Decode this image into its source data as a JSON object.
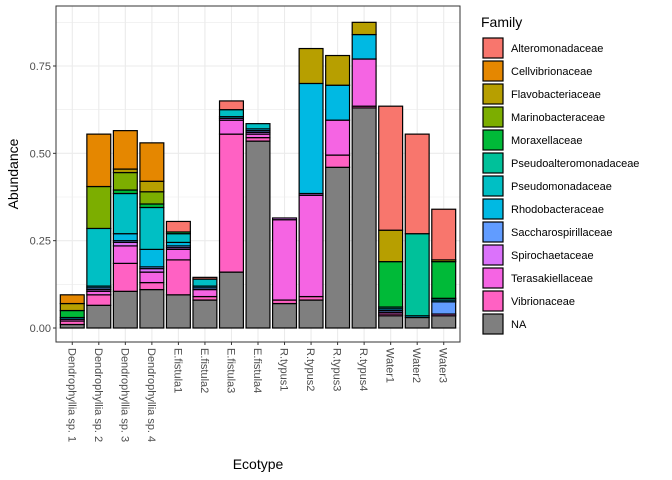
{
  "chart_data": {
    "type": "bar",
    "stacked": true,
    "xlabel": "Ecotype",
    "ylabel": "Abundance",
    "legend_title": "Family",
    "legend_position": "right",
    "grid": true,
    "ylim": [
      0,
      0.88
    ],
    "yticks": [
      0,
      0.25,
      0.5,
      0.75
    ],
    "ytick_labels": [
      "0.00",
      "0.25",
      "0.50",
      "0.75"
    ],
    "categories": [
      "Dendrophyllia sp. 1",
      "Dendrophyllia sp. 2",
      "Dendrophyllia sp. 3",
      "Dendrophyllia sp. 4",
      "E.fistula1",
      "E.fistula2",
      "E.fistula3",
      "E.fistula4",
      "R.typus1",
      "R.typus2",
      "R.typus3",
      "R.typus4",
      "Water1",
      "Water2",
      "Water3"
    ],
    "series": [
      {
        "name": "NA",
        "color": "#7F7F7F",
        "values": [
          0.01,
          0.065,
          0.105,
          0.11,
          0.095,
          0.08,
          0.16,
          0.535,
          0.07,
          0.08,
          0.46,
          0.63,
          0.035,
          0.03,
          0.035
        ]
      },
      {
        "name": "Vibrionaceae",
        "color": "#FF61C3",
        "values": [
          0.01,
          0.03,
          0.08,
          0.02,
          0.1,
          0.01,
          0.395,
          0.01,
          0.01,
          0.01,
          0.035,
          0.005,
          0.005,
          0.0,
          0.0
        ]
      },
      {
        "name": "Terasakiellaceae",
        "color": "#F564E3",
        "values": [
          0.005,
          0.01,
          0.05,
          0.03,
          0.03,
          0.02,
          0.04,
          0.01,
          0.23,
          0.29,
          0.1,
          0.135,
          0.005,
          0.0,
          0.005
        ]
      },
      {
        "name": "Spirochaetaceae",
        "color": "#DB72FB",
        "values": [
          0.0,
          0.005,
          0.01,
          0.01,
          0.005,
          0.0,
          0.005,
          0.005,
          0.005,
          0.005,
          0.0,
          0.0,
          0.0,
          0.0,
          0.0
        ]
      },
      {
        "name": "Saccharospirillaceae",
        "color": "#619CFF",
        "values": [
          0.0,
          0.005,
          0.005,
          0.005,
          0.005,
          0.005,
          0.0,
          0.005,
          0.0,
          0.0,
          0.0,
          0.0,
          0.005,
          0.0,
          0.035
        ]
      },
      {
        "name": "Rhodobacteraceae",
        "color": "#00B9E3",
        "values": [
          0.005,
          0.005,
          0.02,
          0.05,
          0.01,
          0.005,
          0.005,
          0.005,
          0.0,
          0.315,
          0.1,
          0.07,
          0.005,
          0.005,
          0.005
        ]
      },
      {
        "name": "Pseudomonadaceae",
        "color": "#00BFC4",
        "values": [
          0.0,
          0.165,
          0.115,
          0.12,
          0.025,
          0.02,
          0.02,
          0.015,
          0.0,
          0.0,
          0.0,
          0.0,
          0.0,
          0.0,
          0.0
        ]
      },
      {
        "name": "Pseudoalteromonadaceae",
        "color": "#00C19A",
        "values": [
          0.0,
          0.0,
          0.0,
          0.0,
          0.0,
          0.0,
          0.0,
          0.0,
          0.0,
          0.0,
          0.0,
          0.0,
          0.005,
          0.235,
          0.005
        ]
      },
      {
        "name": "Moraxellaceae",
        "color": "#00BA38",
        "values": [
          0.02,
          0.0,
          0.01,
          0.01,
          0.005,
          0.0,
          0.0,
          0.0,
          0.0,
          0.0,
          0.0,
          0.0,
          0.13,
          0.0,
          0.105
        ]
      },
      {
        "name": "Marinobacteraceae",
        "color": "#7CAE00",
        "values": [
          0.0,
          0.12,
          0.05,
          0.035,
          0.0,
          0.0,
          0.0,
          0.0,
          0.0,
          0.0,
          0.0,
          0.0,
          0.0,
          0.0,
          0.0
        ]
      },
      {
        "name": "Flavobacteriaceae",
        "color": "#B79F00",
        "values": [
          0.02,
          0.0,
          0.01,
          0.03,
          0.0,
          0.0,
          0.0,
          0.0,
          0.0,
          0.1,
          0.085,
          0.035,
          0.09,
          0.0,
          0.005
        ]
      },
      {
        "name": "Cellvibrionaceae",
        "color": "#E58700",
        "values": [
          0.025,
          0.15,
          0.11,
          0.11,
          0.0,
          0.0,
          0.0,
          0.0,
          0.0,
          0.0,
          0.0,
          0.0,
          0.0,
          0.0,
          0.0
        ]
      },
      {
        "name": "Alteromonadaceae",
        "color": "#F8766D",
        "values": [
          0.0,
          0.0,
          0.0,
          0.0,
          0.03,
          0.005,
          0.025,
          0.0,
          0.0,
          0.0,
          0.0,
          0.0,
          0.355,
          0.285,
          0.145
        ]
      }
    ],
    "legend_order": [
      "Alteromonadaceae",
      "Cellvibrionaceae",
      "Flavobacteriaceae",
      "Marinobacteraceae",
      "Moraxellaceae",
      "Pseudoalteromonadaceae",
      "Pseudomonadaceae",
      "Rhodobacteraceae",
      "Saccharospirillaceae",
      "Spirochaetaceae",
      "Terasakiellaceae",
      "Vibrionaceae",
      "NA"
    ]
  }
}
